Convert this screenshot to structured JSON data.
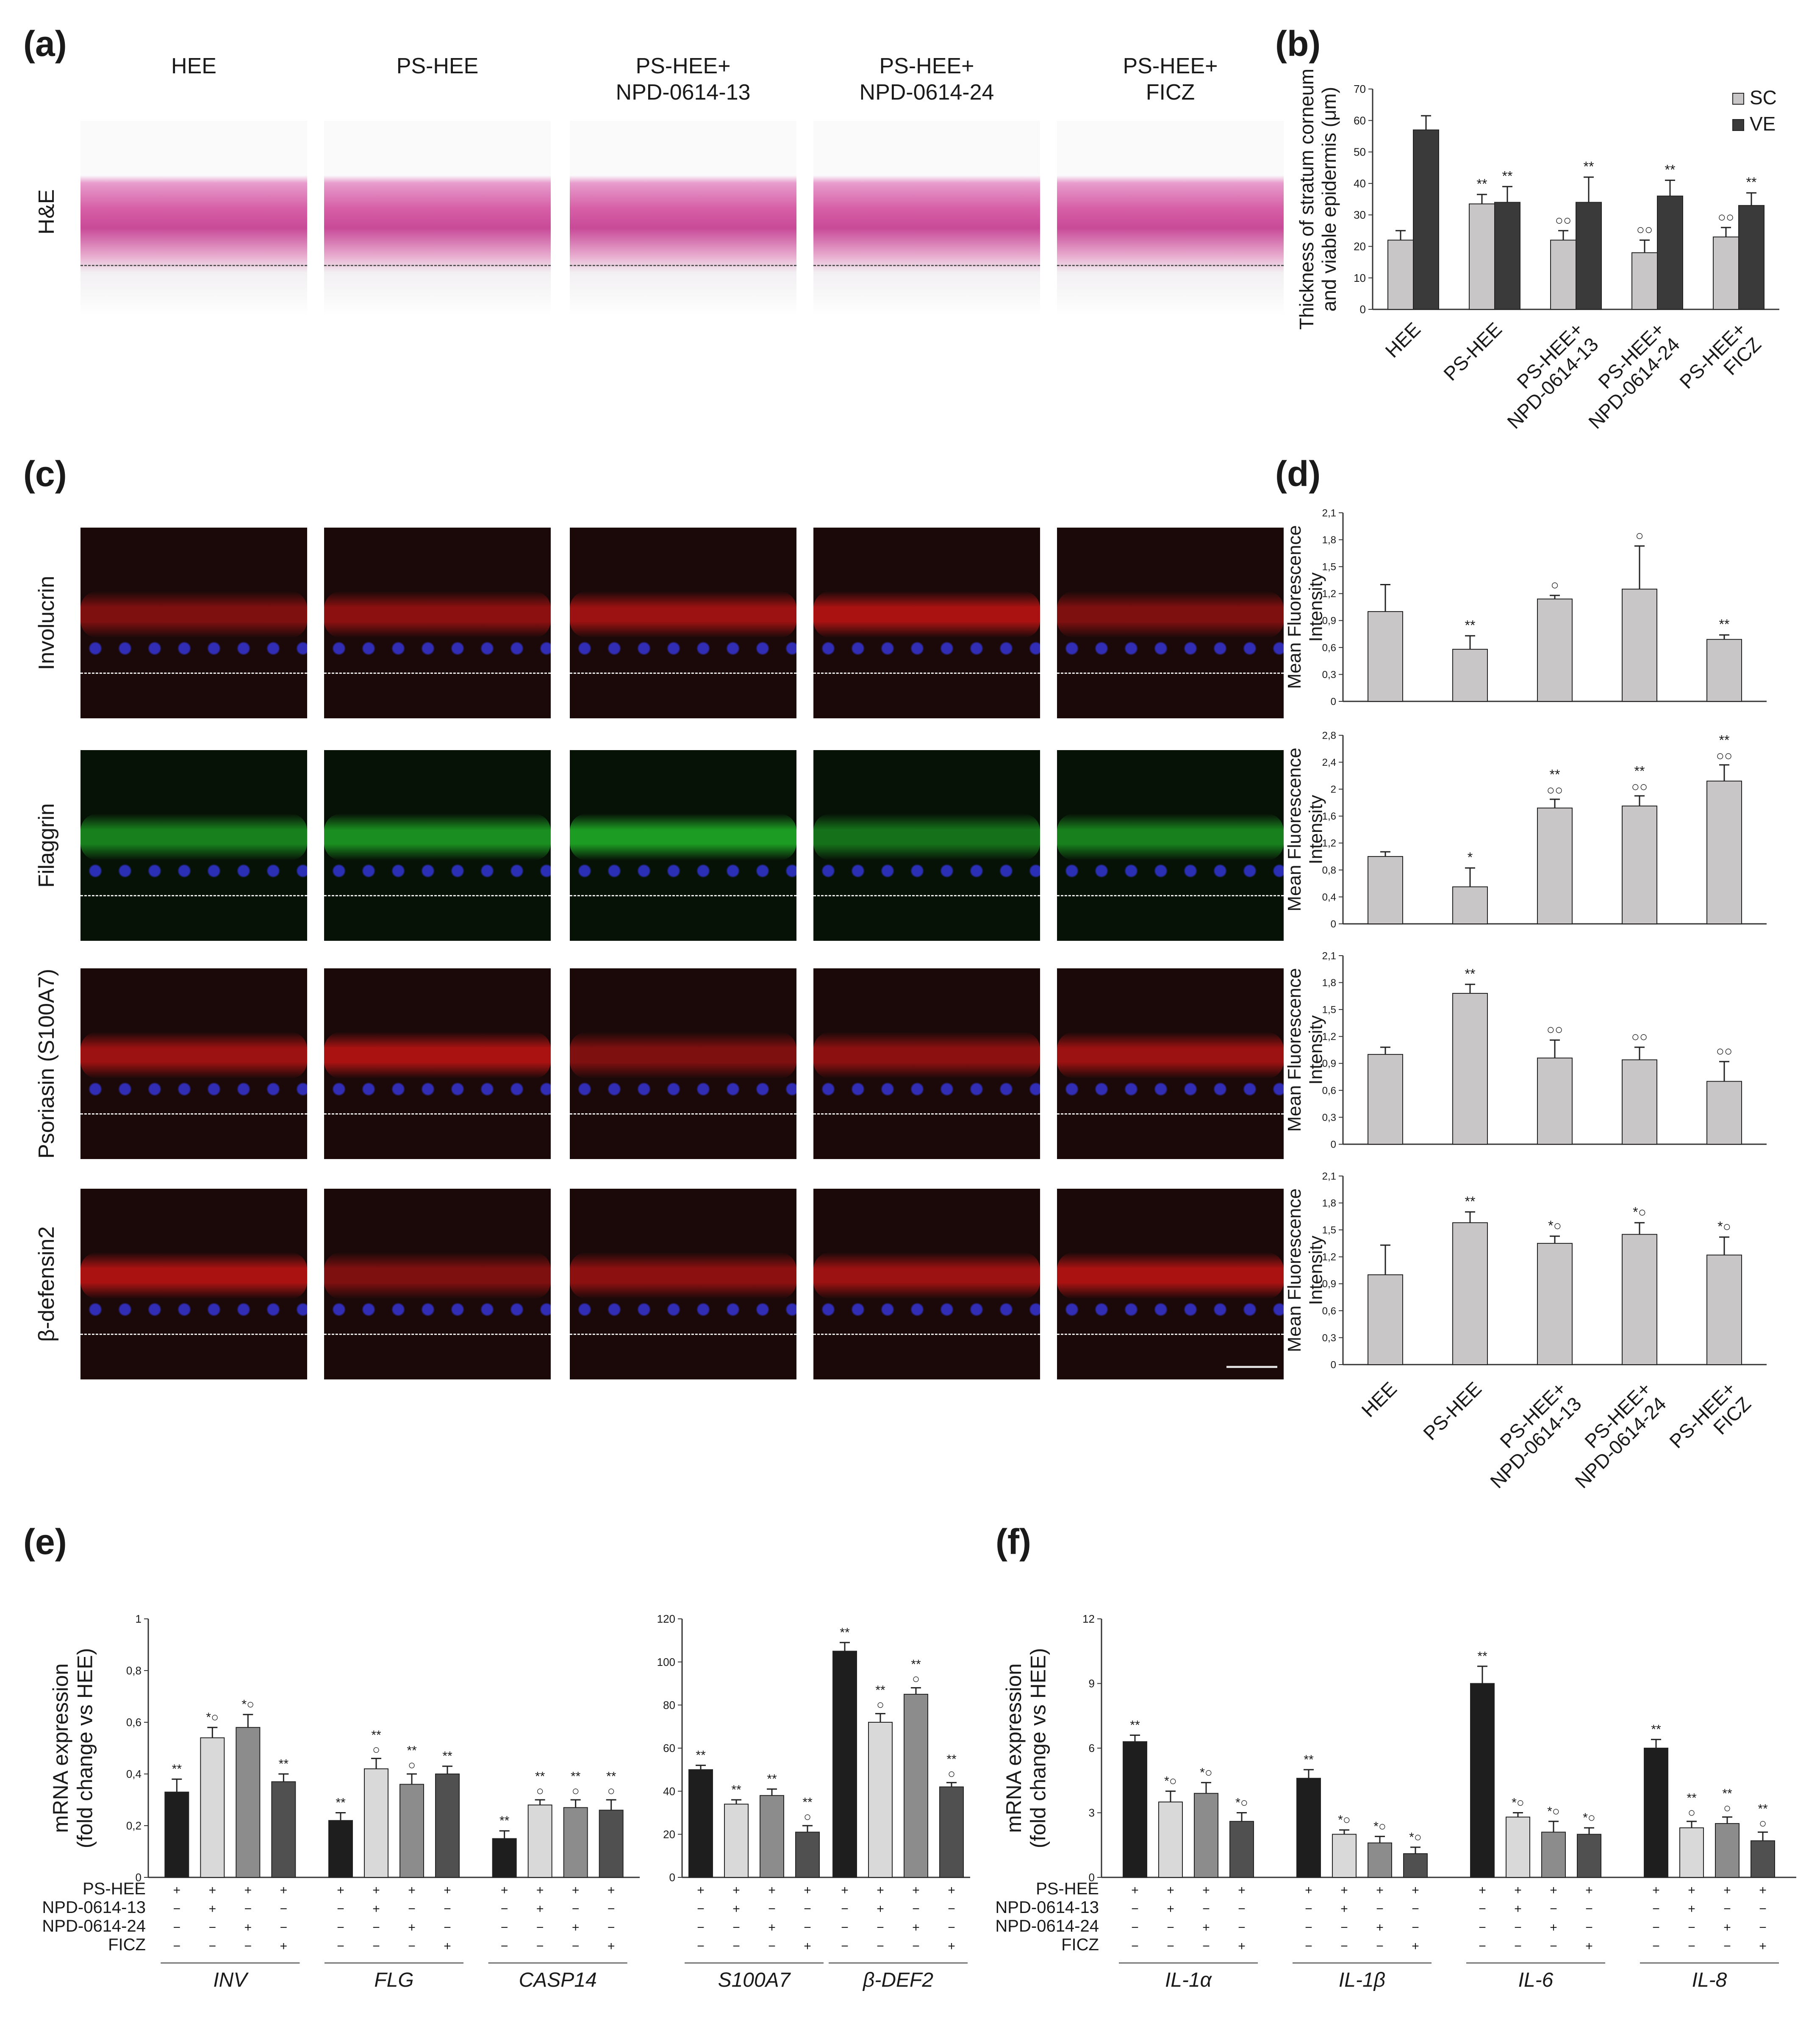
{
  "panels": {
    "a": "(a)",
    "b": "(b)",
    "c": "(c)",
    "d": "(d)",
    "e": "(e)",
    "f": "(f)"
  },
  "micro_panel": {
    "column_titles": [
      "HEE",
      "PS-HEE",
      "PS-HEE+\nNPD-0614-13",
      "PS-HEE+\nNPD-0614-24",
      "PS-HEE+\nFICZ"
    ],
    "he_row_label": "H&E",
    "if_row_labels": [
      "Involucrin",
      "Filaggrin",
      "Psoriasin (S100A7)",
      "β-defensin2"
    ]
  },
  "chart_data": [
    {
      "id": "b",
      "type": "bar",
      "categories": [
        "HEE",
        "PS-HEE",
        "PS-HEE+\nNPD-0614-13",
        "PS-HEE+\nNPD-0614-24",
        "PS-HEE+\nFICZ"
      ],
      "series": [
        {
          "name": "SC",
          "color": "#c8c6c6",
          "values": [
            22,
            33.5,
            22,
            18,
            23
          ],
          "errors": [
            3,
            3,
            3,
            4,
            3
          ],
          "marks": [
            "",
            "**",
            "○○",
            "○○",
            "○○"
          ]
        },
        {
          "name": "VE",
          "color": "#3a3a3a",
          "values": [
            57,
            34,
            34,
            36,
            33
          ],
          "errors": [
            4.5,
            5,
            8,
            5,
            4
          ],
          "marks": [
            "",
            "**",
            "**",
            "**",
            "**"
          ]
        }
      ],
      "ylabel": "Thickness of stratum corneum\nand viable epidermis (μm)",
      "ylim": [
        0,
        70
      ],
      "yticks": [
        "0",
        "10",
        "20",
        "30",
        "40",
        "50",
        "60",
        "70"
      ],
      "legend_position": "top-right"
    },
    {
      "id": "d1",
      "type": "bar",
      "categories": [
        "HEE",
        "PS-HEE",
        "PS-HEE+\nNPD-0614-13",
        "PS-HEE+\nNPD-0614-24",
        "PS-HEE+\nFICZ"
      ],
      "values": [
        1.0,
        0.58,
        1.14,
        1.25,
        0.69
      ],
      "errors": [
        0.3,
        0.15,
        0.04,
        0.48,
        0.05
      ],
      "marks": [
        "",
        "**",
        "○",
        "○",
        "**"
      ],
      "ylabel": "Mean Fluorescence\nIntensity",
      "ylim": [
        0,
        2.1
      ],
      "yticks": [
        "0",
        "0,3",
        "0,6",
        "0,9",
        "1,2",
        "1,5",
        "1,8",
        "2,1"
      ]
    },
    {
      "id": "d2",
      "type": "bar",
      "categories": [
        "HEE",
        "PS-HEE",
        "PS-HEE+\nNPD-0614-13",
        "PS-HEE+\nNPD-0614-24",
        "PS-HEE+\nFICZ"
      ],
      "values": [
        1.0,
        0.55,
        1.72,
        1.75,
        2.12
      ],
      "errors": [
        0.07,
        0.28,
        0.13,
        0.15,
        0.24
      ],
      "marks": [
        "",
        "*",
        "**\n○○",
        "**\n○○",
        "**\n○○"
      ],
      "ylabel": "Mean Fluorescence\nIntensity",
      "ylim": [
        0,
        2.8
      ],
      "yticks": [
        "0",
        "0,4",
        "0,8",
        "1,2",
        "1,6",
        "2",
        "2,4",
        "2,8"
      ]
    },
    {
      "id": "d3",
      "type": "bar",
      "categories": [
        "HEE",
        "PS-HEE",
        "PS-HEE+\nNPD-0614-13",
        "PS-HEE+\nNPD-0614-24",
        "PS-HEE+\nFICZ"
      ],
      "values": [
        1.0,
        1.68,
        0.96,
        0.94,
        0.7
      ],
      "errors": [
        0.08,
        0.1,
        0.2,
        0.14,
        0.22
      ],
      "marks": [
        "",
        "**",
        "○○",
        "○○",
        "○○"
      ],
      "ylabel": "Mean Fluorescence\nIntensity",
      "ylim": [
        0,
        2.1
      ],
      "yticks": [
        "0",
        "0,3",
        "0,6",
        "0,9",
        "1,2",
        "1,5",
        "1,8",
        "2,1"
      ]
    },
    {
      "id": "d4",
      "type": "bar",
      "categories": [
        "HEE",
        "PS-HEE",
        "PS-HEE+\nNPD-0614-13",
        "PS-HEE+\nNPD-0614-24",
        "PS-HEE+\nFICZ"
      ],
      "values": [
        1.0,
        1.58,
        1.35,
        1.45,
        1.22
      ],
      "errors": [
        0.33,
        0.12,
        0.08,
        0.13,
        0.2
      ],
      "marks": [
        "",
        "**",
        "*○",
        "*○",
        "*○"
      ],
      "ylabel": "Mean Fluorescence\nIntensity",
      "ylim": [
        0,
        2.1
      ],
      "yticks": [
        "0",
        "0,3",
        "0,6",
        "0,9",
        "1,2",
        "1,5",
        "1,8",
        "2,1"
      ]
    },
    {
      "id": "e1",
      "type": "bar",
      "groups": [
        "INV",
        "FLG",
        "CASP14"
      ],
      "colors": [
        "#1e1e1e",
        "#d9d9d9",
        "#8c8c8c",
        "#505050"
      ],
      "values": [
        [
          0.33,
          0.54,
          0.58,
          0.37
        ],
        [
          0.22,
          0.42,
          0.36,
          0.4
        ],
        [
          0.15,
          0.28,
          0.27,
          0.26
        ]
      ],
      "errors": [
        [
          0.05,
          0.04,
          0.05,
          0.03
        ],
        [
          0.03,
          0.04,
          0.04,
          0.03
        ],
        [
          0.03,
          0.02,
          0.03,
          0.04
        ]
      ],
      "marks": [
        [
          "**",
          "*○",
          "*○",
          "**"
        ],
        [
          "**",
          "**\n○",
          "**\n○",
          "**"
        ],
        [
          "**",
          "**\n○",
          "**\n○",
          "**\n○"
        ]
      ],
      "ylabel": "mRNA expression\n(fold change vs HEE)",
      "ylim": [
        0,
        1
      ],
      "yticks": [
        "0",
        "0,2",
        "0,4",
        "0,6",
        "0,8",
        "1"
      ]
    },
    {
      "id": "e2",
      "type": "bar",
      "groups": [
        "S100A7",
        "β-DEF2"
      ],
      "colors": [
        "#1e1e1e",
        "#d9d9d9",
        "#8c8c8c",
        "#505050"
      ],
      "values": [
        [
          50,
          34,
          38,
          21
        ],
        [
          105,
          72,
          85,
          42
        ]
      ],
      "errors": [
        [
          2,
          2,
          3,
          3
        ],
        [
          4,
          4,
          3,
          2
        ]
      ],
      "marks": [
        [
          "**",
          "**",
          "**",
          "**\n○"
        ],
        [
          "**",
          "**\n○",
          "**\n○",
          "**\n○"
        ]
      ],
      "ylim": [
        0,
        120
      ],
      "yticks": [
        "0",
        "20",
        "40",
        "60",
        "80",
        "100",
        "120"
      ]
    },
    {
      "id": "f",
      "type": "bar",
      "groups": [
        "IL-1α",
        "IL-1β",
        "IL-6",
        "IL-8"
      ],
      "colors": [
        "#1e1e1e",
        "#d9d9d9",
        "#8c8c8c",
        "#505050"
      ],
      "values": [
        [
          6.3,
          3.5,
          3.9,
          2.6
        ],
        [
          4.6,
          2.0,
          1.6,
          1.1
        ],
        [
          9.0,
          2.8,
          2.1,
          2.0
        ],
        [
          6.0,
          2.3,
          2.5,
          1.7
        ]
      ],
      "errors": [
        [
          0.3,
          0.5,
          0.5,
          0.4
        ],
        [
          0.4,
          0.2,
          0.3,
          0.3
        ],
        [
          0.8,
          0.2,
          0.5,
          0.3
        ],
        [
          0.4,
          0.3,
          0.3,
          0.4
        ]
      ],
      "marks": [
        [
          "**",
          "*○",
          "*○",
          "*○"
        ],
        [
          "**",
          "*○",
          "*○",
          "*○"
        ],
        [
          "**",
          "*○",
          "*○",
          "*○"
        ],
        [
          "**",
          "**\n○",
          "**\n○",
          "**\n○"
        ]
      ],
      "ylabel": "mRNA expression\n(fold change vs HEE)",
      "ylim": [
        0,
        12
      ],
      "yticks": [
        "0",
        "3",
        "6",
        "9",
        "12"
      ]
    }
  ],
  "treatment_table": {
    "rows": [
      "PS-HEE",
      "NPD-0614-13",
      "NPD-0614-24",
      "FICZ"
    ],
    "pattern": [
      [
        "+",
        "+",
        "+",
        "+"
      ],
      [
        "−",
        "+",
        "−",
        "−"
      ],
      [
        "−",
        "−",
        "+",
        "−"
      ],
      [
        "−",
        "−",
        "−",
        "+"
      ]
    ]
  }
}
